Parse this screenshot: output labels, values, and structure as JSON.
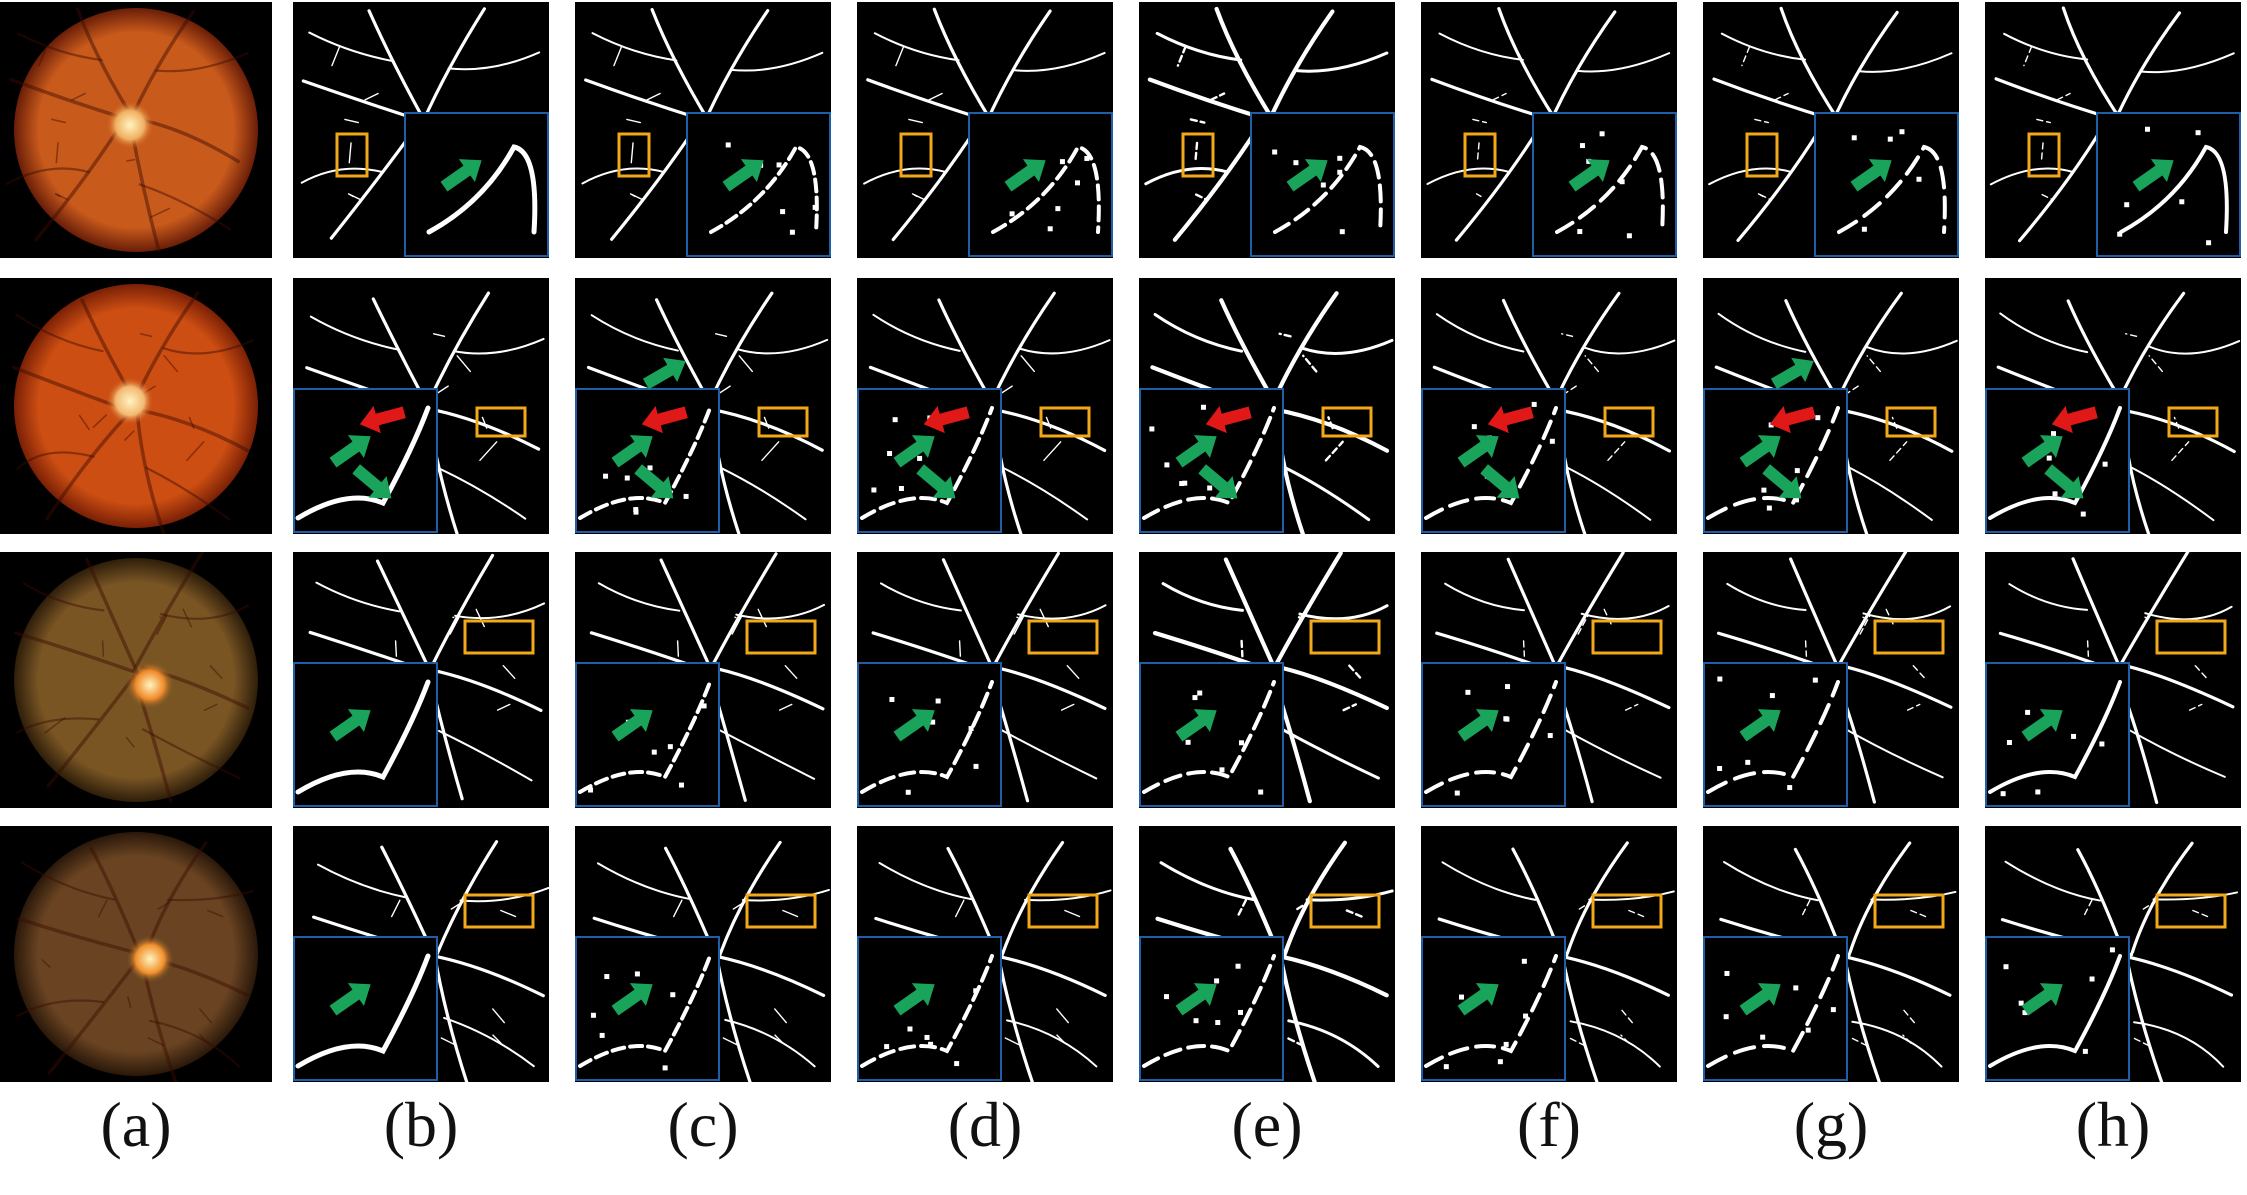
{
  "figure": {
    "columns": [
      {
        "label": "(a)",
        "kind": "fundus"
      },
      {
        "label": "(b)",
        "kind": "ground-truth"
      },
      {
        "label": "(c)",
        "kind": "segmentation"
      },
      {
        "label": "(d)",
        "kind": "segmentation"
      },
      {
        "label": "(e)",
        "kind": "segmentation"
      },
      {
        "label": "(f)",
        "kind": "segmentation"
      },
      {
        "label": "(g)",
        "kind": "segmentation"
      },
      {
        "label": "(h)",
        "kind": "segmentation"
      }
    ],
    "rows": [
      {
        "fundus_color": "#c85a1c",
        "fundus_edge": "#6a1e08",
        "disc_color": "#f0b060",
        "zoom_corner": "right",
        "arrows": [
          "green"
        ],
        "highlight_box": "left-mid"
      },
      {
        "fundus_color": "#cc4e12",
        "fundus_edge": "#7a2006",
        "disc_color": "#f2b872",
        "zoom_corner": "left",
        "arrows": [
          "red",
          "green",
          "green-top"
        ],
        "highlight_box": "right-mid"
      },
      {
        "fundus_color": "#7a5524",
        "fundus_edge": "#2e1e0a",
        "disc_color": "#f08a2a",
        "zoom_corner": "left",
        "arrows": [
          "green"
        ],
        "highlight_box": "right-top"
      },
      {
        "fundus_color": "#6a4422",
        "fundus_edge": "#2a180a",
        "disc_color": "#f0902c",
        "zoom_corner": "left",
        "arrows": [
          "green"
        ],
        "highlight_box": "right-top"
      }
    ],
    "colors": {
      "zoom_border": "#1f5fa8",
      "highlight_box": "#f2a818",
      "arrow_green": "#1aa35a",
      "arrow_red": "#e01818",
      "vessel": "#ffffff",
      "background": "#000000"
    }
  }
}
